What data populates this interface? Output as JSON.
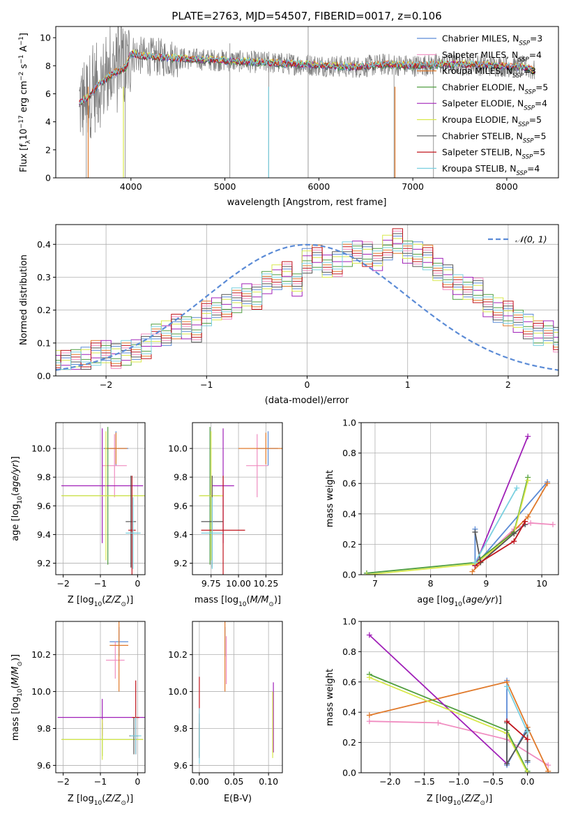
{
  "figure": {
    "title": "PLATE=2763, MJD=54507, FIBERID=0017, z=0.106"
  },
  "colors": {
    "Chabrier MILES": "#5b8bd6",
    "Salpeter MILES": "#f08cc0",
    "Kroupa MILES": "#e0792a",
    "Chabrier ELODIE": "#4f9e3f",
    "Salpeter ELODIE": "#a020b8",
    "Kroupa ELODIE": "#d8e84a",
    "Chabrier STELIB": "#555555",
    "Salpeter STELIB": "#c0141c",
    "Kroupa STELIB": "#7ad0e0",
    "data": "#7f7f7f",
    "normal": "#5b8bd6",
    "grid": "#b0b0b0"
  },
  "legend_spectrum": [
    {
      "model": "Chabrier MILES",
      "label": "Chabrier MILES, N",
      "sub": "SSP",
      "eq": "=3"
    },
    {
      "model": "Salpeter MILES",
      "label": "Salpeter MILES, N",
      "sub": "SSP",
      "eq": "=4"
    },
    {
      "model": "Kroupa MILES",
      "label": "Kroupa MILES, N",
      "sub": "SSP",
      "eq": "=3"
    },
    {
      "model": "Chabrier ELODIE",
      "label": "Chabrier ELODIE, N",
      "sub": "SSP",
      "eq": "=5"
    },
    {
      "model": "Salpeter ELODIE",
      "label": "Salpeter ELODIE, N",
      "sub": "SSP",
      "eq": "=4"
    },
    {
      "model": "Kroupa ELODIE",
      "label": "Kroupa ELODIE, N",
      "sub": "SSP",
      "eq": "=5"
    },
    {
      "model": "Chabrier STELIB",
      "label": "Chabrier STELIB, N",
      "sub": "SSP",
      "eq": "=5"
    },
    {
      "model": "Salpeter STELIB",
      "label": "Salpeter STELIB, N",
      "sub": "SSP",
      "eq": "=5"
    },
    {
      "model": "Kroupa STELIB",
      "label": "Kroupa STELIB, N",
      "sub": "SSP",
      "eq": "=4"
    }
  ],
  "chart_data": [
    {
      "id": "spectrum",
      "type": "line",
      "title": "PLATE=2763, MJD=54507, FIBERID=0017, z=0.106",
      "xlabel": "wavelength [Angstrom, rest frame]",
      "ylabel": "Flux [f_λ 10^-17 erg cm^-2 s^-1 A^-1]",
      "xlim": [
        3200,
        8550
      ],
      "ylim": [
        0,
        10.8
      ],
      "xticks": [
        4000,
        5000,
        6000,
        7000,
        8000
      ],
      "yticks": [
        0,
        2,
        4,
        6,
        8,
        10
      ],
      "grid": false,
      "legend": "top-right",
      "continuum": {
        "x": [
          3450,
          3550,
          3650,
          3800,
          3950,
          4000,
          4100,
          4300,
          4600,
          4900,
          5200,
          5500,
          5800,
          6100,
          6400,
          6700,
          7000,
          7300,
          7600,
          7900,
          8200,
          8300
        ],
        "y": [
          5.3,
          5.8,
          6.6,
          7.4,
          7.9,
          8.9,
          8.7,
          8.6,
          8.5,
          8.4,
          8.3,
          8.2,
          8.1,
          8.0,
          7.9,
          8.1,
          8.0,
          8.1,
          8.1,
          8.0,
          7.9,
          7.6
        ]
      },
      "series": [
        "Chabrier MILES",
        "Salpeter MILES",
        "Kroupa MILES",
        "Chabrier ELODIE",
        "Salpeter ELODIE",
        "Kroupa ELODIE",
        "Chabrier STELIB",
        "Salpeter STELIB",
        "Kroupa STELIB"
      ]
    },
    {
      "id": "residuals",
      "type": "histogram",
      "xlabel": "(data-model)/error",
      "ylabel": "Normed distribution",
      "xlim": [
        -2.5,
        2.5
      ],
      "ylim": [
        0,
        0.46
      ],
      "xticks": [
        -2,
        -1,
        0,
        1,
        2
      ],
      "yticks": [
        0.0,
        0.1,
        0.2,
        0.3,
        0.4
      ],
      "grid": true,
      "legend": "top-right",
      "normal_label": "N(0,1)",
      "normal": {
        "mean": 0,
        "sigma": 1
      },
      "bin_width": 0.1,
      "bin_start": -2.5,
      "base_values": [
        0.04,
        0.04,
        0.05,
        0.05,
        0.07,
        0.07,
        0.06,
        0.07,
        0.08,
        0.09,
        0.12,
        0.13,
        0.15,
        0.15,
        0.14,
        0.19,
        0.2,
        0.21,
        0.23,
        0.25,
        0.24,
        0.28,
        0.3,
        0.31,
        0.28,
        0.35,
        0.36,
        0.33,
        0.34,
        0.37,
        0.38,
        0.37,
        0.35,
        0.39,
        0.41,
        0.38,
        0.37,
        0.36,
        0.32,
        0.3,
        0.27,
        0.27,
        0.26,
        0.21,
        0.2,
        0.19,
        0.17,
        0.15,
        0.13,
        0.13,
        0.11,
        0.09,
        0.08,
        0.07,
        0.06,
        0.05,
        0.05,
        0.04,
        0.04,
        0.03,
        0.03
      ],
      "series": [
        "Chabrier MILES",
        "Salpeter MILES",
        "Kroupa MILES",
        "Chabrier ELODIE",
        "Salpeter ELODIE",
        "Kroupa ELODIE",
        "Chabrier STELIB",
        "Salpeter STELIB",
        "Kroupa STELIB"
      ]
    },
    {
      "id": "age_vs_Z",
      "type": "scatter",
      "xlabel": "Z [log10(Z/Z_sun)]",
      "ylabel": "age [log10(age/yr)]",
      "xlim": [
        -2.2,
        0.2
      ],
      "ylim": [
        9.12,
        10.18
      ],
      "xticks": [
        -2,
        -1,
        0
      ],
      "yticks": [
        9.2,
        9.4,
        9.6,
        9.8,
        10.0
      ],
      "grid": true,
      "points": [
        {
          "model": "Chabrier MILES",
          "x": -0.58,
          "y": 10.0,
          "xerr": 0.33,
          "yerr": 0.12
        },
        {
          "model": "Salpeter MILES",
          "x": -0.62,
          "y": 9.88,
          "xerr": 0.33,
          "yerr": 0.22
        },
        {
          "model": "Kroupa MILES",
          "x": -0.58,
          "y": 10.0,
          "xerr": 0.3,
          "yerr": 0.11
        },
        {
          "model": "Chabrier ELODIE",
          "x": -0.8,
          "y": 9.67,
          "xerr": 1.25,
          "yerr": 0.48
        },
        {
          "model": "Salpeter ELODIE",
          "x": -0.95,
          "y": 9.74,
          "xerr": 1.1,
          "yerr": 0.4
        },
        {
          "model": "Kroupa ELODIE",
          "x": -0.85,
          "y": 9.67,
          "xerr": 1.2,
          "yerr": 0.45
        },
        {
          "model": "Chabrier STELIB",
          "x": -0.18,
          "y": 9.49,
          "xerr": 0.14,
          "yerr": 0.32
        },
        {
          "model": "Salpeter STELIB",
          "x": -0.15,
          "y": 9.43,
          "xerr": 0.1,
          "yerr": 0.38
        },
        {
          "model": "Kroupa STELIB",
          "x": -0.12,
          "y": 9.41,
          "xerr": 0.2,
          "yerr": 0.25
        }
      ]
    },
    {
      "id": "age_vs_mass",
      "type": "scatter",
      "xlabel": "mass [log10(M/M_sun)]",
      "ylabel": "",
      "xlim": [
        9.58,
        10.4
      ],
      "ylim": [
        9.12,
        10.18
      ],
      "xticks": [
        9.75,
        10.0,
        10.25
      ],
      "yticks": [
        9.2,
        9.4,
        9.6,
        9.8,
        10.0
      ],
      "grid": true,
      "points": [
        {
          "model": "Chabrier MILES",
          "x": 10.27,
          "y": 10.0,
          "xerr": 0.09,
          "yerr": 0.12
        },
        {
          "model": "Salpeter MILES",
          "x": 10.17,
          "y": 9.88,
          "xerr": 0.1,
          "yerr": 0.22
        },
        {
          "model": "Kroupa MILES",
          "x": 10.25,
          "y": 10.0,
          "xerr": 0.25,
          "yerr": 0.11
        },
        {
          "model": "Chabrier ELODIE",
          "x": 9.74,
          "y": 9.67,
          "xerr": 0.09,
          "yerr": 0.48
        },
        {
          "model": "Salpeter ELODIE",
          "x": 9.86,
          "y": 9.74,
          "xerr": 0.1,
          "yerr": 0.4
        },
        {
          "model": "Kroupa ELODIE",
          "x": 9.75,
          "y": 9.67,
          "xerr": 0.11,
          "yerr": 0.45
        },
        {
          "model": "Chabrier STELIB",
          "x": 9.76,
          "y": 9.49,
          "xerr": 0.1,
          "yerr": 0.32
        },
        {
          "model": "Salpeter STELIB",
          "x": 9.86,
          "y": 9.43,
          "xerr": 0.2,
          "yerr": 0.38
        },
        {
          "model": "Kroupa STELIB",
          "x": 9.76,
          "y": 9.41,
          "xerr": 0.1,
          "yerr": 0.25
        }
      ]
    },
    {
      "id": "mass_weight_vs_age",
      "type": "line",
      "xlabel": "age [log10(age/yr)]",
      "ylabel": "mass weight",
      "xlim": [
        6.75,
        10.3
      ],
      "ylim": [
        0.0,
        1.0
      ],
      "xticks": [
        7,
        8,
        9,
        10
      ],
      "yticks": [
        0.0,
        0.2,
        0.4,
        0.6,
        0.8,
        1.0
      ],
      "grid": true,
      "series": [
        {
          "model": "Chabrier MILES",
          "x": [
            8.8,
            8.8,
            10.1
          ],
          "y": [
            0.3,
            0.06,
            0.61
          ]
        },
        {
          "model": "Salpeter MILES",
          "x": [
            8.8,
            9.5,
            9.8,
            10.2
          ],
          "y": [
            0.06,
            0.3,
            0.34,
            0.33
          ]
        },
        {
          "model": "Kroupa MILES",
          "x": [
            8.75,
            9.75,
            10.1
          ],
          "y": [
            0.02,
            0.38,
            0.6
          ]
        },
        {
          "model": "Chabrier ELODIE",
          "x": [
            6.85,
            8.8,
            9.5,
            9.75
          ],
          "y": [
            0.01,
            0.08,
            0.28,
            0.64
          ]
        },
        {
          "model": "Salpeter ELODIE",
          "x": [
            8.8,
            9.75
          ],
          "y": [
            0.06,
            0.91
          ]
        },
        {
          "model": "Kroupa ELODIE",
          "x": [
            6.85,
            8.8,
            9.5,
            9.75
          ],
          "y": [
            0.0,
            0.07,
            0.27,
            0.62
          ]
        },
        {
          "model": "Chabrier STELIB",
          "x": [
            8.8,
            8.9,
            9.5,
            9.7
          ],
          "y": [
            0.28,
            0.08,
            0.27,
            0.33
          ]
        },
        {
          "model": "Salpeter STELIB",
          "x": [
            8.8,
            9.5,
            9.7
          ],
          "y": [
            0.06,
            0.22,
            0.35
          ]
        },
        {
          "model": "Kroupa STELIB",
          "x": [
            8.8,
            9.55
          ],
          "y": [
            0.08,
            0.57
          ]
        }
      ]
    },
    {
      "id": "mass_vs_Z",
      "type": "scatter",
      "xlabel": "Z [log10(Z/Z_sun)]",
      "ylabel": "mass [log10(M/M_sun)]",
      "xlim": [
        -2.2,
        0.2
      ],
      "ylim": [
        9.56,
        10.38
      ],
      "xticks": [
        -2,
        -1,
        0
      ],
      "yticks": [
        9.6,
        9.8,
        10.0,
        10.2
      ],
      "grid": true,
      "points": [
        {
          "model": "Chabrier MILES",
          "x": -0.5,
          "y": 10.27,
          "xerr": 0.25,
          "yerr": 0.08
        },
        {
          "model": "Salpeter MILES",
          "x": -0.6,
          "y": 10.17,
          "xerr": 0.25,
          "yerr": 0.1
        },
        {
          "model": "Kroupa MILES",
          "x": -0.5,
          "y": 10.25,
          "xerr": 0.25,
          "yerr": 0.25
        },
        {
          "model": "Chabrier ELODIE",
          "x": -0.95,
          "y": 9.74,
          "xerr": 1.1,
          "yerr": 0.09
        },
        {
          "model": "Salpeter ELODIE",
          "x": -0.95,
          "y": 9.86,
          "xerr": 1.2,
          "yerr": 0.1
        },
        {
          "model": "Kroupa ELODIE",
          "x": -0.95,
          "y": 9.74,
          "xerr": 1.1,
          "yerr": 0.11
        },
        {
          "model": "Chabrier STELIB",
          "x": -0.1,
          "y": 9.76,
          "xerr": 0.12,
          "yerr": 0.1
        },
        {
          "model": "Salpeter STELIB",
          "x": -0.05,
          "y": 9.86,
          "xerr": 0.1,
          "yerr": 0.2
        },
        {
          "model": "Kroupa STELIB",
          "x": -0.05,
          "y": 9.76,
          "xerr": 0.15,
          "yerr": 0.1
        }
      ]
    },
    {
      "id": "mass_vs_ebv",
      "type": "scatter",
      "xlabel": "E(B-V)",
      "ylabel": "",
      "xlim": [
        -0.01,
        0.12
      ],
      "ylim": [
        9.56,
        10.38
      ],
      "xticks": [
        0.0,
        0.05,
        0.1
      ],
      "yticks": [
        9.6,
        9.8,
        10.0,
        10.2
      ],
      "grid": true,
      "points": [
        {
          "model": "Chabrier MILES",
          "x": 0.037,
          "y": 10.27,
          "xerr": 0,
          "yerr": 0.08
        },
        {
          "model": "Salpeter MILES",
          "x": 0.039,
          "y": 10.17,
          "xerr": 0,
          "yerr": 0.13
        },
        {
          "model": "Kroupa MILES",
          "x": 0.037,
          "y": 10.25,
          "xerr": 0,
          "yerr": 0.25
        },
        {
          "model": "Chabrier ELODIE",
          "x": 0.0,
          "y": 9.74,
          "xerr": 0,
          "yerr": 0.09
        },
        {
          "model": "Salpeter ELODIE",
          "x": 0.107,
          "y": 9.86,
          "xerr": 0,
          "yerr": 0.19
        },
        {
          "model": "Kroupa ELODIE",
          "x": 0.106,
          "y": 9.82,
          "xerr": 0,
          "yerr": 0.18
        },
        {
          "model": "Chabrier STELIB",
          "x": 0.0,
          "y": 9.76,
          "xerr": 0,
          "yerr": 0.12
        },
        {
          "model": "Salpeter STELIB",
          "x": 0.0,
          "y": 9.86,
          "xerr": 0,
          "yerr": 0.22
        },
        {
          "model": "Kroupa STELIB",
          "x": 0.0,
          "y": 9.76,
          "xerr": 0,
          "yerr": 0.15
        }
      ]
    },
    {
      "id": "mass_weight_vs_Z",
      "type": "line",
      "xlabel": "Z [log10(Z/Z_sun)]",
      "ylabel": "mass weight",
      "xlim": [
        -2.42,
        0.45
      ],
      "ylim": [
        0.0,
        1.0
      ],
      "xticks": [
        -2.0,
        -1.5,
        -1.0,
        -0.5,
        0.0
      ],
      "yticks": [
        0.0,
        0.2,
        0.4,
        0.6,
        0.8,
        1.0
      ],
      "grid": true,
      "series": [
        {
          "model": "Chabrier MILES",
          "x": [
            -0.3,
            -0.3,
            0.0,
            0.0
          ],
          "y": [
            0.61,
            0.05,
            0.3,
            0.07
          ]
        },
        {
          "model": "Salpeter MILES",
          "x": [
            -2.3,
            -1.3,
            -0.3,
            0.3
          ],
          "y": [
            0.34,
            0.33,
            0.22,
            0.05
          ]
        },
        {
          "model": "Kroupa MILES",
          "x": [
            -2.3,
            -0.3,
            0.0,
            0.3
          ],
          "y": [
            0.38,
            0.6,
            0.3,
            0.01
          ]
        },
        {
          "model": "Chabrier ELODIE",
          "x": [
            -2.3,
            -0.3,
            0.0
          ],
          "y": [
            0.65,
            0.28,
            0.01
          ]
        },
        {
          "model": "Salpeter ELODIE",
          "x": [
            -2.3,
            -0.3
          ],
          "y": [
            0.91,
            0.06
          ]
        },
        {
          "model": "Kroupa ELODIE",
          "x": [
            -2.3,
            -0.3,
            0.0
          ],
          "y": [
            0.63,
            0.26,
            0.0
          ]
        },
        {
          "model": "Chabrier STELIB",
          "x": [
            -0.3,
            -0.3,
            0.0,
            0.0
          ],
          "y": [
            0.33,
            0.06,
            0.28,
            0.08
          ]
        },
        {
          "model": "Salpeter STELIB",
          "x": [
            -0.3,
            0.0
          ],
          "y": [
            0.34,
            0.22
          ]
        },
        {
          "model": "Kroupa STELIB",
          "x": [
            -0.3,
            0.0
          ],
          "y": [
            0.57,
            0.27
          ]
        }
      ]
    }
  ]
}
